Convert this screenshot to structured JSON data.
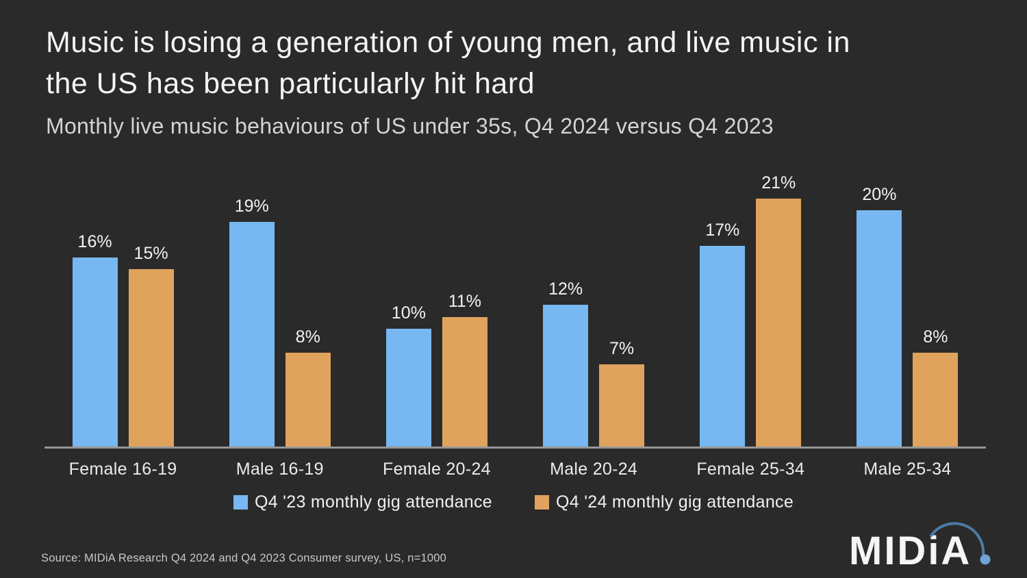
{
  "slide": {
    "title_lines": [
      "Music is losing a generation of young men, and live music in",
      "the US has been particularly hit hard"
    ],
    "subtitle": "Monthly live music behaviours of US under 35s, Q4 2024 versus Q4 2023",
    "source": "Source: MIDiA Research Q4 2024 and Q4 2023 Consumer survey, US, n=1000",
    "logo": {
      "text": "MIDiA",
      "text_color": "#f5f5f5",
      "arc_color": "#4c7ba3",
      "dot_color": "#6fa3d6"
    }
  },
  "colors": {
    "background": "#2a2a2a",
    "title": "#f4f4f4",
    "subtitle": "#d4d4d4",
    "axis": "#969696",
    "labels": "#ececec",
    "source": "#c9c9c9"
  },
  "chart_data": {
    "type": "bar",
    "title": "Music is losing a generation of young men, and live music in the US has been particularly hit hard",
    "subtitle": "Monthly live music behaviours of US under 35s, Q4 2024 versus Q4 2023",
    "categories": [
      "Female 16-19",
      "Male 16-19",
      "Female 20-24",
      "Male 20-24",
      "Female 25-34",
      "Male 25-34"
    ],
    "series": [
      {
        "name": "Q4 '23 monthly gig attendance",
        "color": "#77b8f2",
        "values": [
          16,
          19,
          10,
          12,
          17,
          20
        ]
      },
      {
        "name": "Q4 '24 monthly gig attendance",
        "color": "#e0a35e",
        "values": [
          15,
          8,
          11,
          7,
          21,
          8
        ]
      }
    ],
    "unit": "%",
    "ylim": [
      0,
      23
    ],
    "grid": false,
    "data_labels": true,
    "legend_position": "bottom",
    "xlabel": "",
    "ylabel": ""
  }
}
